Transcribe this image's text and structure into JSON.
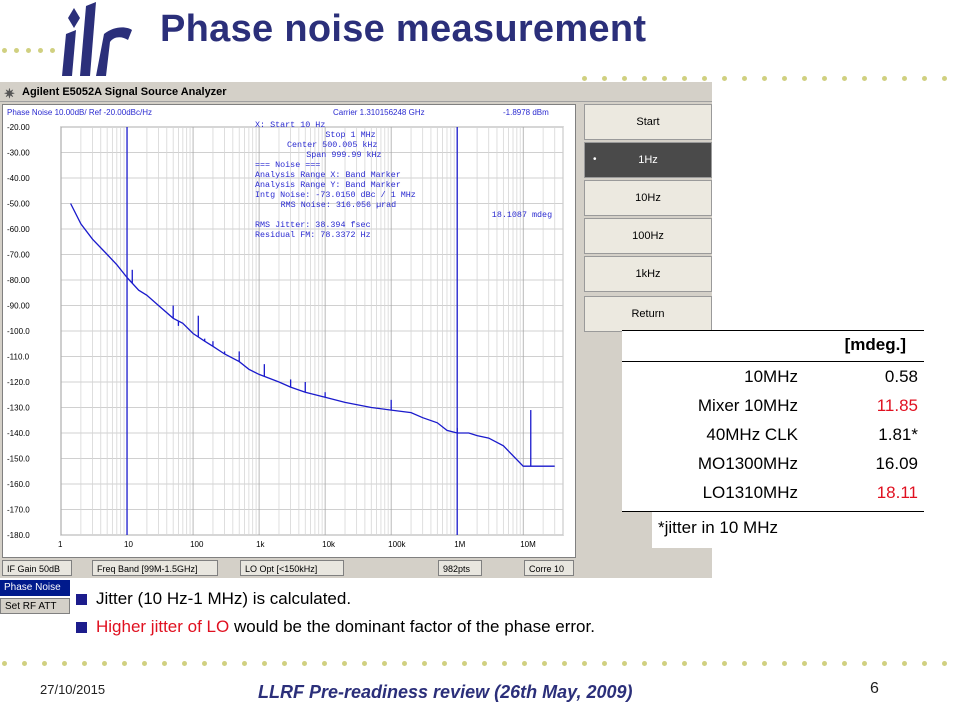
{
  "slide": {
    "title": "Phase noise measurement",
    "date": "27/10/2015",
    "footer": "LLRF Pre-readiness review (26th May, 2009)",
    "page_number": "6",
    "logo_alt": "ilc",
    "accent_color": "#2b2f7a"
  },
  "analyzer": {
    "window_title": "Agilent E5052A Signal Source Analyzer",
    "header_left": "Phase Noise 10.00dB/ Ref -20.00dBc/Hz",
    "carrier_label": "Carrier 1.310156248 GHz",
    "carrier_power": "-1.8978 dBm",
    "y_ticks": [
      "-20.00",
      "-30.00",
      "-40.00",
      "-50.00",
      "-60.00",
      "-70.00",
      "-80.00",
      "-90.00",
      "-100.0",
      "-110.0",
      "-120.0",
      "-130.0",
      "-140.0",
      "-150.0",
      "-160.0",
      "-170.0",
      "-180.0"
    ],
    "x_ticks": [
      "1",
      "10",
      "100",
      "1k",
      "10k",
      "100k",
      "1M",
      "10M"
    ],
    "readout": [
      "X: Start 10 Hz",
      "Stop 1 MHz",
      "Center 500.005 kHz",
      "Span 999.99 kHz",
      "=== Noise ===",
      "Analysis Range X: Band Marker",
      "Analysis Range Y: Band Marker",
      "Intg Noise: -73.0150 dBc / 1 MHz",
      "RMS Noise: 316.056 µrad",
      "18.1087 mdeg",
      "RMS Jitter: 38.394 fsec",
      "Residual FM: 78.3372 Hz"
    ],
    "softkeys": [
      {
        "label": "Start",
        "selected": false
      },
      {
        "label": "1Hz",
        "selected": true
      },
      {
        "label": "10Hz",
        "selected": false
      },
      {
        "label": "100Hz",
        "selected": false
      },
      {
        "label": "1kHz",
        "selected": false
      },
      {
        "label": "Return",
        "selected": false
      }
    ],
    "status": [
      "IF Gain 50dB",
      "Freq Band [99M-1.5GHz]",
      "LO Opt [<150kHz]",
      "982pts",
      "Corre 10"
    ],
    "tabs": [
      "Phase Noise",
      "Set RF ATT"
    ],
    "trace_color": "#1a1acc",
    "marker_color": "#2a2ad0"
  },
  "chart_data": {
    "type": "line",
    "title": "Phase Noise 10.00dB/ Ref -20.00dBc/Hz",
    "xlabel": "",
    "ylabel": "",
    "x_scale": "log",
    "xlim": [
      1,
      40000000
    ],
    "ylim": [
      -180,
      -20
    ],
    "grid": true,
    "band_markers_hz": [
      10,
      1000000
    ],
    "series": [
      {
        "x": [
          1.4,
          2,
          3,
          5,
          7,
          10,
          15,
          20,
          30,
          50,
          70,
          100,
          150,
          200,
          300,
          500,
          700,
          1000,
          2000,
          3000,
          5000,
          10000,
          20000,
          50000,
          100000,
          200000,
          300000,
          500000,
          700000,
          1000000,
          1500000,
          2000000,
          3000000,
          5000000,
          10000000,
          30000000
        ],
        "y": [
          -50,
          -58,
          -64,
          -70,
          -74,
          -79,
          -84,
          -86,
          -90,
          -95,
          -97,
          -101,
          -104,
          -106,
          -109,
          -112,
          -115,
          -117,
          -120,
          -122,
          -124,
          -126,
          -128,
          -130,
          -131,
          -132,
          -134,
          -136,
          -139,
          -140,
          -140,
          -141,
          -142,
          -145,
          -153,
          -153
        ]
      }
    ],
    "spurs": [
      {
        "x": 12,
        "y": -76
      },
      {
        "x": 50,
        "y": -90
      },
      {
        "x": 60,
        "y": -98
      },
      {
        "x": 100,
        "y": -101
      },
      {
        "x": 120,
        "y": -94
      },
      {
        "x": 150,
        "y": -103
      },
      {
        "x": 200,
        "y": -104
      },
      {
        "x": 300,
        "y": -108
      },
      {
        "x": 500,
        "y": -108
      },
      {
        "x": 1200,
        "y": -113
      },
      {
        "x": 3000,
        "y": -119
      },
      {
        "x": 5000,
        "y": -120
      },
      {
        "x": 10000,
        "y": -124
      },
      {
        "x": 100000,
        "y": -127
      },
      {
        "x": 1000000,
        "y": -138
      },
      {
        "x": 13000000,
        "y": -131
      }
    ]
  },
  "jitter_table": {
    "unit_header": "[mdeg.]",
    "rows": [
      {
        "label": "10MHz",
        "value": "0.58",
        "color": "#000000"
      },
      {
        "label": "Mixer 10MHz",
        "value": "11.85",
        "color": "#e01020"
      },
      {
        "label": "40MHz CLK",
        "value": "1.81*",
        "color": "#000000"
      },
      {
        "label": "MO1300MHz",
        "value": "16.09",
        "color": "#000000"
      },
      {
        "label": "LO1310MHz",
        "value": "18.11",
        "color": "#e01020"
      }
    ],
    "footnote": "*jitter in 10 MHz"
  },
  "bullets": {
    "b1": "Jitter (10 Hz-1 MHz) is calculated.",
    "b2_red": "Higher jitter of LO",
    "b2_rest": " would be the dominant factor of the phase error."
  }
}
